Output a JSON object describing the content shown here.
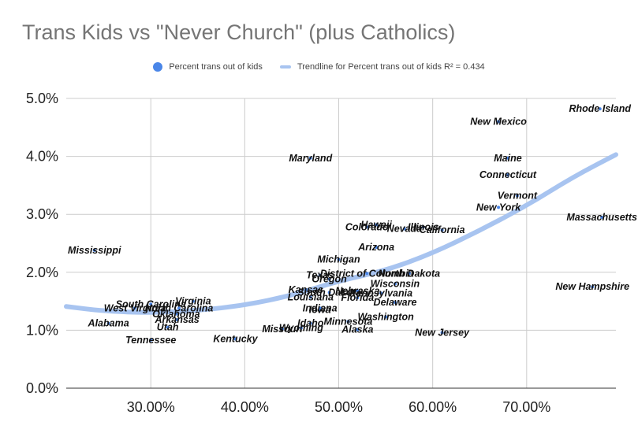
{
  "chart_data": {
    "type": "scatter",
    "title": "Trans Kids vs \"Never Church\" (plus Catholics)",
    "legend_position": "top",
    "grid": true,
    "xlim": [
      0.21,
      0.795
    ],
    "ylim": [
      0,
      0.05
    ],
    "x_ticks": [
      0.3,
      0.4,
      0.5,
      0.6,
      0.7
    ],
    "x_tick_labels": [
      "30.00%",
      "40.00%",
      "50.00%",
      "60.00%",
      "70.00%"
    ],
    "y_ticks": [
      0,
      0.01,
      0.02,
      0.03,
      0.04,
      0.05
    ],
    "y_tick_labels": [
      "0.0%",
      "1.0%",
      "2.0%",
      "3.0%",
      "4.0%",
      "5.0%"
    ],
    "series": [
      {
        "name": "Percent trans out of kids",
        "color": "#4a86e8",
        "points": [
          {
            "label": "Alabama",
            "x": 0.255,
            "y": 0.0112
          },
          {
            "label": "West Virginia",
            "x": 0.283,
            "y": 0.0138
          },
          {
            "label": "South Carolina",
            "x": 0.3,
            "y": 0.0145
          },
          {
            "label": "Virginia",
            "x": 0.345,
            "y": 0.015
          },
          {
            "label": "North Carolina",
            "x": 0.33,
            "y": 0.0138
          },
          {
            "label": "Oklahoma",
            "x": 0.327,
            "y": 0.0128
          },
          {
            "label": "Arkansas",
            "x": 0.328,
            "y": 0.0118
          },
          {
            "label": "Utah",
            "x": 0.318,
            "y": 0.0105
          },
          {
            "label": "Tennessee",
            "x": 0.3,
            "y": 0.0083
          },
          {
            "label": "Mississippi",
            "x": 0.24,
            "y": 0.0238
          },
          {
            "label": "Kentucky",
            "x": 0.39,
            "y": 0.0085
          },
          {
            "label": "Missouri",
            "x": 0.44,
            "y": 0.0102
          },
          {
            "label": "Wyoming",
            "x": 0.46,
            "y": 0.0104
          },
          {
            "label": "Idaho",
            "x": 0.47,
            "y": 0.0112
          },
          {
            "label": "Minnesota",
            "x": 0.51,
            "y": 0.0115
          },
          {
            "label": "Alaska",
            "x": 0.52,
            "y": 0.0101
          },
          {
            "label": "Washington",
            "x": 0.55,
            "y": 0.0123
          },
          {
            "label": "Iowa",
            "x": 0.48,
            "y": 0.0135
          },
          {
            "label": "Indiana",
            "x": 0.48,
            "y": 0.0138
          },
          {
            "label": "Louisiana",
            "x": 0.47,
            "y": 0.0157
          },
          {
            "label": "South Dakota",
            "x": 0.49,
            "y": 0.0165
          },
          {
            "label": "Kansas",
            "x": 0.465,
            "y": 0.017
          },
          {
            "label": "Nebraska",
            "x": 0.52,
            "y": 0.0168
          },
          {
            "label": "Florida",
            "x": 0.52,
            "y": 0.0156
          },
          {
            "label": "Pennsylvania",
            "x": 0.545,
            "y": 0.0164
          },
          {
            "label": "Wisconsin",
            "x": 0.56,
            "y": 0.018
          },
          {
            "label": "Delaware",
            "x": 0.56,
            "y": 0.0148
          },
          {
            "label": "Oregon",
            "x": 0.49,
            "y": 0.0188
          },
          {
            "label": "Texas",
            "x": 0.48,
            "y": 0.0195
          },
          {
            "label": "Michigan",
            "x": 0.5,
            "y": 0.0222
          },
          {
            "label": "District of Columbia",
            "x": 0.53,
            "y": 0.0198
          },
          {
            "label": "North Dakota",
            "x": 0.575,
            "y": 0.0198
          },
          {
            "label": "Arizona",
            "x": 0.54,
            "y": 0.0243
          },
          {
            "label": "Colorado",
            "x": 0.53,
            "y": 0.0278
          },
          {
            "label": "Hawaii",
            "x": 0.54,
            "y": 0.0282
          },
          {
            "label": "Nevada",
            "x": 0.57,
            "y": 0.0275
          },
          {
            "label": "Illinois",
            "x": 0.59,
            "y": 0.0278
          },
          {
            "label": "California",
            "x": 0.61,
            "y": 0.0273
          },
          {
            "label": "Maryland",
            "x": 0.47,
            "y": 0.0397
          },
          {
            "label": "New Jersey",
            "x": 0.61,
            "y": 0.0096
          },
          {
            "label": "New York",
            "x": 0.67,
            "y": 0.0312
          },
          {
            "label": "Vermont",
            "x": 0.69,
            "y": 0.0332
          },
          {
            "label": "Connecticut",
            "x": 0.68,
            "y": 0.0368
          },
          {
            "label": "Maine",
            "x": 0.68,
            "y": 0.0397
          },
          {
            "label": "New Mexico",
            "x": 0.67,
            "y": 0.046
          },
          {
            "label": "Rhode Island",
            "x": 0.778,
            "y": 0.0482
          },
          {
            "label": "Massachusetts",
            "x": 0.78,
            "y": 0.0295
          },
          {
            "label": "New Hampshire",
            "x": 0.77,
            "y": 0.0175
          }
        ]
      },
      {
        "name": "Trendline for Percent trans out of kids R² = 0.434",
        "color": "#a8c4f0",
        "type": "trendline",
        "points": [
          {
            "x": 0.21,
            "y": 0.0141
          },
          {
            "x": 0.25,
            "y": 0.0133
          },
          {
            "x": 0.3,
            "y": 0.013
          },
          {
            "x": 0.35,
            "y": 0.0134
          },
          {
            "x": 0.4,
            "y": 0.0143
          },
          {
            "x": 0.45,
            "y": 0.016
          },
          {
            "x": 0.5,
            "y": 0.0185
          },
          {
            "x": 0.55,
            "y": 0.0203
          },
          {
            "x": 0.6,
            "y": 0.0233
          },
          {
            "x": 0.65,
            "y": 0.0272
          },
          {
            "x": 0.7,
            "y": 0.0315
          },
          {
            "x": 0.75,
            "y": 0.0365
          },
          {
            "x": 0.795,
            "y": 0.0403
          }
        ]
      }
    ]
  }
}
